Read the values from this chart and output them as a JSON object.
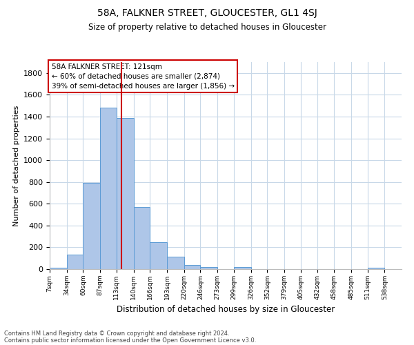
{
  "title": "58A, FALKNER STREET, GLOUCESTER, GL1 4SJ",
  "subtitle": "Size of property relative to detached houses in Gloucester",
  "xlabel": "Distribution of detached houses by size in Gloucester",
  "ylabel": "Number of detached properties",
  "bar_color": "#aec6e8",
  "bar_edge_color": "#5b9bd5",
  "background_color": "#ffffff",
  "grid_color": "#c8d8e8",
  "tick_labels": [
    "7sqm",
    "34sqm",
    "60sqm",
    "87sqm",
    "113sqm",
    "140sqm",
    "166sqm",
    "193sqm",
    "220sqm",
    "246sqm",
    "273sqm",
    "299sqm",
    "326sqm",
    "352sqm",
    "379sqm",
    "405sqm",
    "432sqm",
    "458sqm",
    "485sqm",
    "511sqm",
    "538sqm"
  ],
  "bar_values": [
    15,
    135,
    790,
    1480,
    1390,
    570,
    250,
    115,
    35,
    20,
    0,
    20,
    0,
    0,
    0,
    0,
    0,
    0,
    0,
    15,
    0
  ],
  "ylim": [
    0,
    1900
  ],
  "yticks": [
    0,
    200,
    400,
    600,
    800,
    1000,
    1200,
    1400,
    1600,
    1800
  ],
  "property_sqm": 121,
  "bin_edges": [
    7,
    34,
    60,
    87,
    113,
    140,
    166,
    193,
    220,
    246,
    273,
    299,
    326,
    352,
    379,
    405,
    432,
    458,
    485,
    511,
    538,
    565
  ],
  "annotation_title": "58A FALKNER STREET: 121sqm",
  "annotation_line1": "← 60% of detached houses are smaller (2,874)",
  "annotation_line2": "39% of semi-detached houses are larger (1,856) →",
  "annotation_box_color": "#ffffff",
  "annotation_box_edge_color": "#cc0000",
  "vline_color": "#cc0000",
  "footer_line1": "Contains HM Land Registry data © Crown copyright and database right 2024.",
  "footer_line2": "Contains public sector information licensed under the Open Government Licence v3.0."
}
